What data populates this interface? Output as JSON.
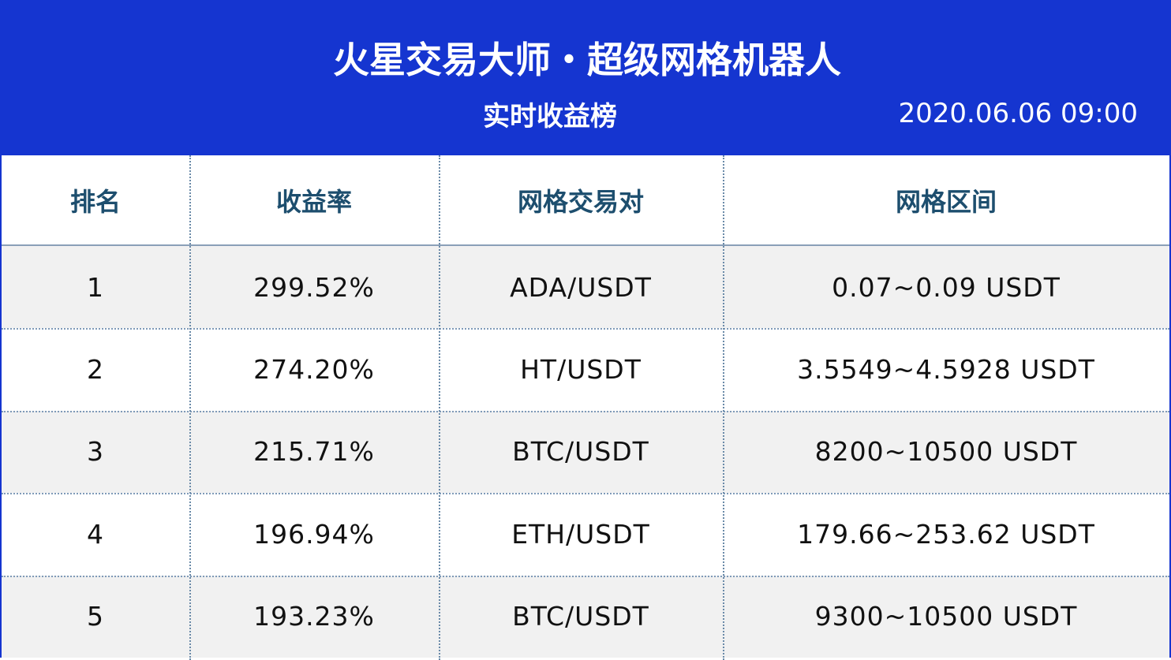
{
  "header": {
    "title": "火星交易大师・超级网格机器人",
    "subtitle": "实时收益榜",
    "datetime": "2020.06.06 09:00"
  },
  "table": {
    "columns": [
      "排名",
      "收益率",
      "网格交易对",
      "网格区间"
    ],
    "rows": [
      [
        "1",
        "299.52%",
        "ADA/USDT",
        "0.07~0.09 USDT"
      ],
      [
        "2",
        "274.20%",
        "HT/USDT",
        "3.5549~4.5928 USDT"
      ],
      [
        "3",
        "215.71%",
        "BTC/USDT",
        "8200~10500 USDT"
      ],
      [
        "4",
        "196.94%",
        "ETH/USDT",
        "179.66~253.62 USDT"
      ],
      [
        "5",
        "193.23%",
        "BTC/USDT",
        "9300~10500 USDT"
      ]
    ]
  }
}
